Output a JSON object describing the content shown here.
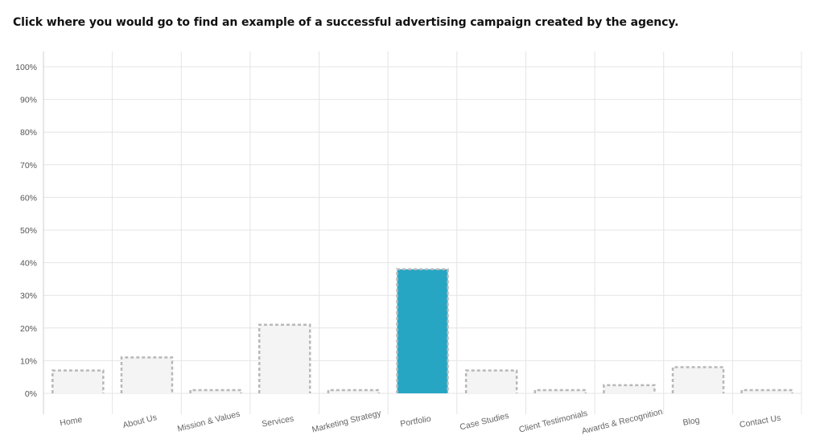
{
  "question": "Click where you would go to find an example of a successful advertising campaign created by the agency.",
  "chart_data": {
    "type": "bar",
    "categories": [
      "Home",
      "About Us",
      "Mission & Values",
      "Services",
      "Marketing Strategy",
      "Portfolio",
      "Case Studies",
      "Client Testimonials",
      "Awards & Recognition",
      "Blog",
      "Contact Us"
    ],
    "values": [
      7,
      11,
      1,
      21,
      1,
      38,
      7,
      1,
      2.5,
      8,
      1
    ],
    "unit": "%",
    "ylim": [
      0,
      100
    ],
    "yticks": [
      0,
      10,
      20,
      30,
      40,
      50,
      60,
      70,
      80,
      90,
      100
    ],
    "ytick_labels": [
      "0%",
      "10%",
      "20%",
      "30%",
      "40%",
      "50%",
      "60%",
      "70%",
      "80%",
      "90%",
      "100%"
    ],
    "highlight_index": 5,
    "colors": {
      "highlight": "#27a6c4",
      "bar_fill": "#f4f4f4",
      "bar_border": "#b8b8b8",
      "grid": "#e4e4e4"
    },
    "grid": true
  }
}
